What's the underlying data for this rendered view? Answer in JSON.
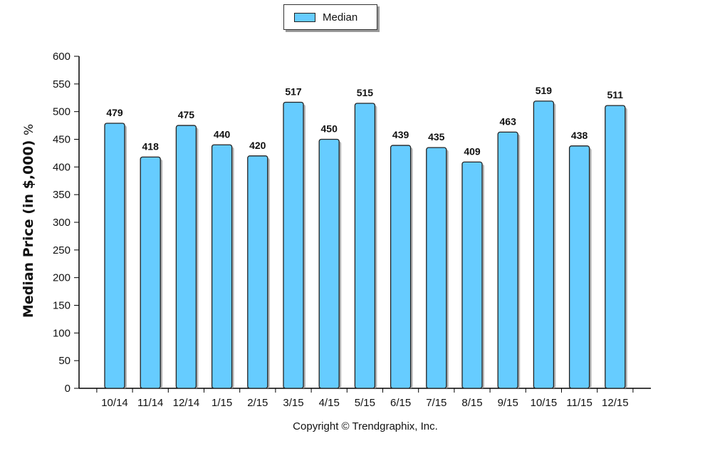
{
  "legend": {
    "label": "Median",
    "color": "#66ccff"
  },
  "ylabel_main": "Median Price (in $,000)",
  "ylabel_suffix": "%",
  "copyright": "Copyright © Trendgraphix, Inc.",
  "chart_data": {
    "type": "bar",
    "categories": [
      "10/14",
      "11/14",
      "12/14",
      "1/15",
      "2/15",
      "3/15",
      "4/15",
      "5/15",
      "6/15",
      "7/15",
      "8/15",
      "9/15",
      "10/15",
      "11/15",
      "12/15"
    ],
    "series": [
      {
        "name": "Median",
        "values": [
          479,
          418,
          475,
          440,
          420,
          517,
          450,
          515,
          439,
          435,
          409,
          463,
          519,
          438,
          511
        ]
      }
    ],
    "ylim": [
      0,
      600
    ],
    "yticks": [
      0,
      50,
      100,
      150,
      200,
      250,
      300,
      350,
      400,
      450,
      500,
      550,
      600
    ],
    "grid": false,
    "legend_position": "top-center",
    "bar_color": "#66ccff"
  }
}
